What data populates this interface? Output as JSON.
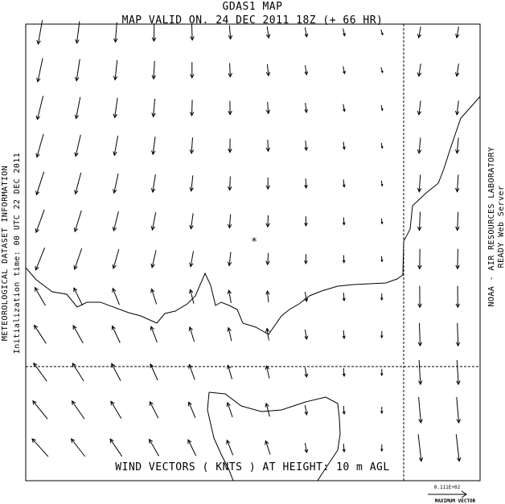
{
  "header": {
    "title": "GDAS1 MAP",
    "subtitle": "MAP VALID ON. 24 DEC 2011 18Z (+ 66 HR)"
  },
  "left_labels": {
    "info": "METEOROLOGICAL DATASET INFORMATION",
    "init": "Initialization time: 00 UTC 22 DEC 2011"
  },
  "right_labels": {
    "lab": "NOAA - AIR RESOURCES LABORATORY",
    "server": "READY Web Server"
  },
  "map": {
    "caption": "WIND VECTORS ( KNTS ) AT HEIGHT: 10 m AGL",
    "marker": "*"
  },
  "legend": {
    "value": "0.111E+02",
    "label": "MAXIMUM VECTOR"
  },
  "colors": {
    "ink": "#000000",
    "background": "#ffffff"
  }
}
